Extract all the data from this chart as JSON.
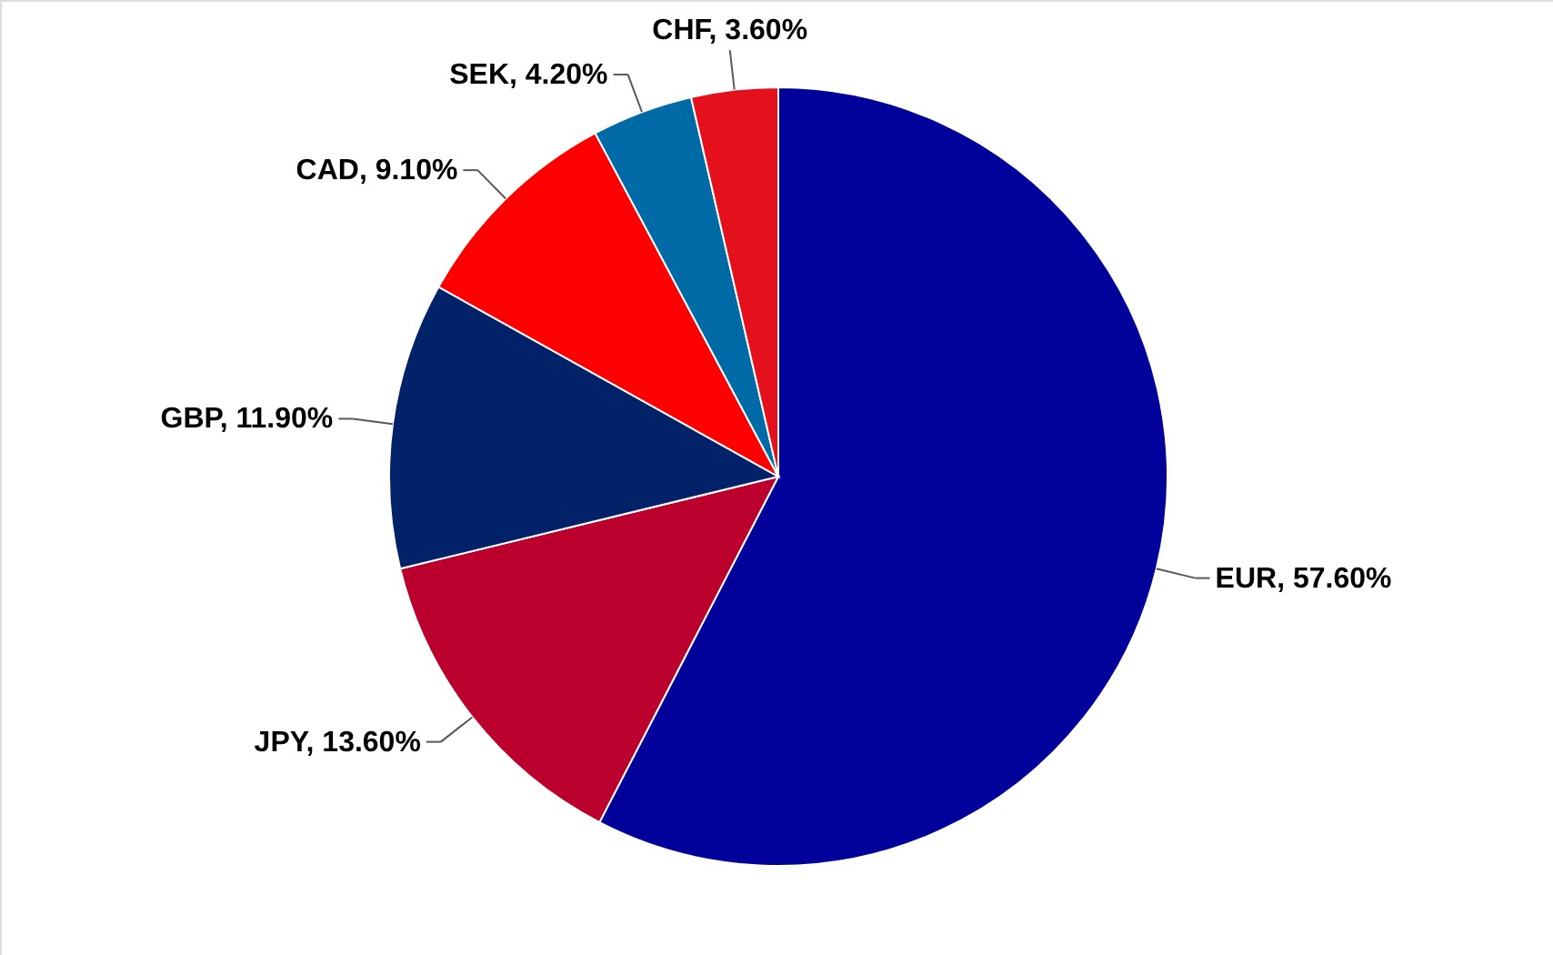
{
  "chart_data": {
    "type": "pie",
    "categories": [
      "EUR",
      "JPY",
      "GBP",
      "CAD",
      "SEK",
      "CHF"
    ],
    "values": [
      57.6,
      13.6,
      11.9,
      9.1,
      4.2,
      3.6
    ],
    "colors": [
      "#00009b",
      "#bc002d",
      "#012169",
      "#ff0000",
      "#006aa7",
      "#e4101b"
    ],
    "value_labels": [
      "57.60%",
      "13.60%",
      "11.90%",
      "9.10%",
      "4.20%",
      "3.60%"
    ]
  }
}
